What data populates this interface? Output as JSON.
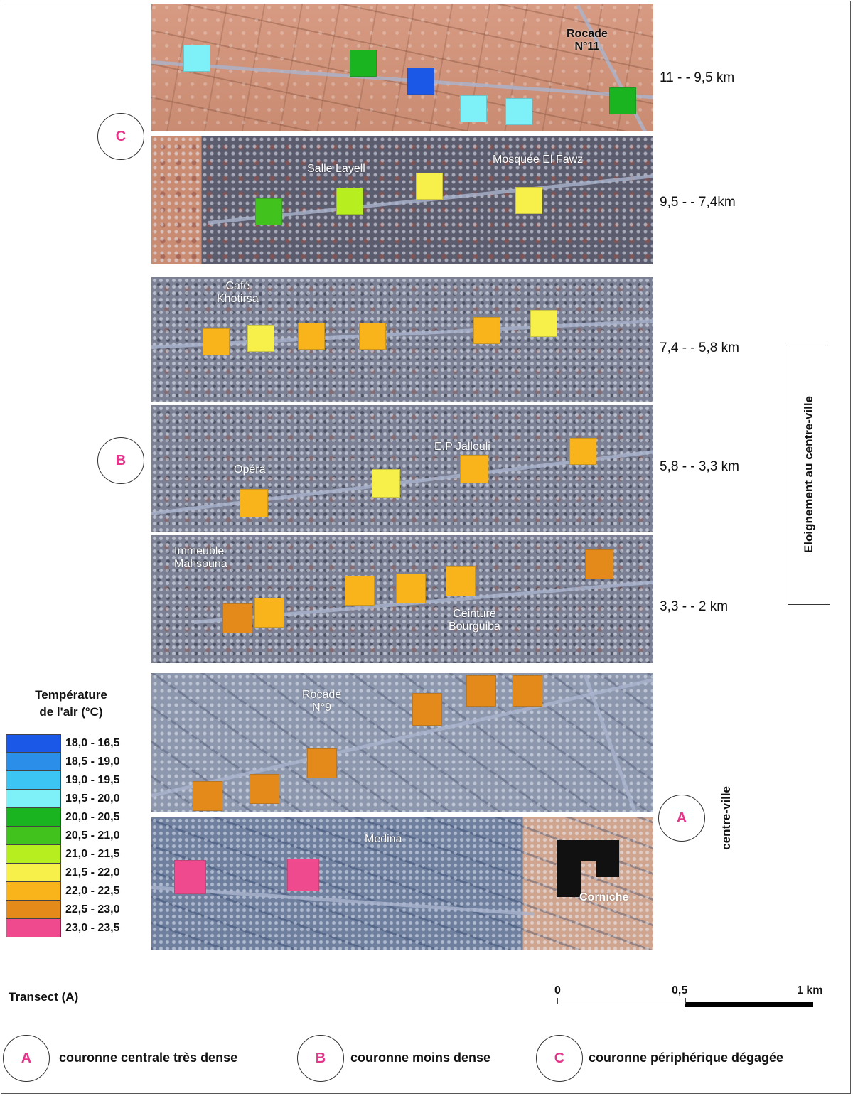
{
  "panels": [
    {
      "id": "p1",
      "style": "arid",
      "labels": [
        {
          "key": "rocade11",
          "text": "Rocade\nN°11"
        }
      ],
      "cells": [
        {
          "color": "#7df0f8"
        },
        {
          "color": "#19b41f"
        },
        {
          "color": "#1b58e8"
        },
        {
          "color": "#7df0f8"
        },
        {
          "color": "#7df0f8"
        },
        {
          "color": "#19b41f"
        }
      ]
    },
    {
      "id": "p2",
      "style": "mixed",
      "labels": [
        {
          "key": "salle",
          "text": "Salle Layell"
        },
        {
          "key": "mosquee",
          "text": "Mosquée El Fawz"
        }
      ],
      "cells": [
        {
          "color": "#42c21c"
        },
        {
          "color": "#b6ee1f"
        },
        {
          "color": "#f8f04a"
        },
        {
          "color": "#f8f04a"
        }
      ]
    },
    {
      "id": "p3",
      "style": "dense",
      "labels": [
        {
          "key": "cafe",
          "text": "Café\nKhotirsa"
        }
      ],
      "cells": [
        {
          "color": "#f8b41a"
        },
        {
          "color": "#f8f04a"
        },
        {
          "color": "#f8b41a"
        },
        {
          "color": "#f8b41a"
        },
        {
          "color": "#f8b41a"
        },
        {
          "color": "#f8f04a"
        }
      ]
    },
    {
      "id": "p4",
      "style": "dense",
      "labels": [
        {
          "key": "opera",
          "text": "Opéra"
        },
        {
          "key": "ep",
          "text": "E.P Jallouli"
        }
      ],
      "cells": [
        {
          "color": "#f8b41a"
        },
        {
          "color": "#f8f04a"
        },
        {
          "color": "#f8b41a"
        },
        {
          "color": "#f8b41a"
        }
      ]
    },
    {
      "id": "p5",
      "style": "dense",
      "labels": [
        {
          "key": "immeuble",
          "text": "Immeuble\nMahsouna"
        },
        {
          "key": "ceinture",
          "text": "Ceinture\nBourguiba"
        }
      ],
      "cells": [
        {
          "color": "#e38a1b"
        },
        {
          "color": "#f8b41a"
        },
        {
          "color": "#f8b41a"
        },
        {
          "color": "#f8b41a"
        },
        {
          "color": "#f8b41a"
        },
        {
          "color": "#e38a1b"
        }
      ]
    },
    {
      "id": "p6",
      "style": "center",
      "labels": [
        {
          "key": "rocade9",
          "text": "Rocade\nN°9"
        }
      ],
      "cells": [
        {
          "color": "#e38a1b"
        },
        {
          "color": "#e38a1b"
        },
        {
          "color": "#e38a1b"
        },
        {
          "color": "#e38a1b"
        },
        {
          "color": "#e38a1b"
        },
        {
          "color": "#e38a1b"
        }
      ]
    },
    {
      "id": "p7",
      "style": "medina",
      "labels": [
        {
          "key": "medina",
          "text": "Medina"
        },
        {
          "key": "corniche",
          "text": "Corniche"
        }
      ],
      "cells": [
        {
          "color": "#ef4a8e"
        },
        {
          "color": "#ef4a8e"
        }
      ]
    }
  ],
  "distances": [
    "11 - - 9,5 km",
    "9,5 - - 7,4km",
    "7,4 - - 5,8 km",
    "5,8 - - 3,3 km",
    "3,3 - - 2 km"
  ],
  "zones": {
    "a": "A",
    "b": "B",
    "c": "C"
  },
  "axis_title": "Eloignement au centre-ville",
  "centre_label": "centre-ville",
  "legend": {
    "title_line1": "Température",
    "title_line2": "de l'air (°C)",
    "items": [
      {
        "range": "18,0 - 16,5",
        "color": "#1b58e8"
      },
      {
        "range": "18,5 - 19,0",
        "color": "#2b8ee8"
      },
      {
        "range": "19,0 - 19,5",
        "color": "#3cc4f2"
      },
      {
        "range": "19,5 - 20,0",
        "color": "#7df0f8"
      },
      {
        "range": "20,0 - 20,5",
        "color": "#19b41f"
      },
      {
        "range": "20,5 - 21,0",
        "color": "#42c21c"
      },
      {
        "range": "21,0 - 21,5",
        "color": "#b6ee1f"
      },
      {
        "range": "21,5 - 22,0",
        "color": "#f8f04a"
      },
      {
        "range": "22,0 - 22,5",
        "color": "#f8b41a"
      },
      {
        "range": "22,5 - 23,0",
        "color": "#e38a1b"
      },
      {
        "range": "23,0 - 23,5",
        "color": "#ef4a8e"
      }
    ]
  },
  "transect": "Transect (A)",
  "scale": {
    "zero": "0",
    "half": "0,5",
    "one": "1 km"
  },
  "footer": [
    {
      "letter": "A",
      "text": "couronne centrale très dense"
    },
    {
      "letter": "B",
      "text": "couronne moins dense"
    },
    {
      "letter": "C",
      "text": "couronne périphérique dégagée"
    }
  ]
}
